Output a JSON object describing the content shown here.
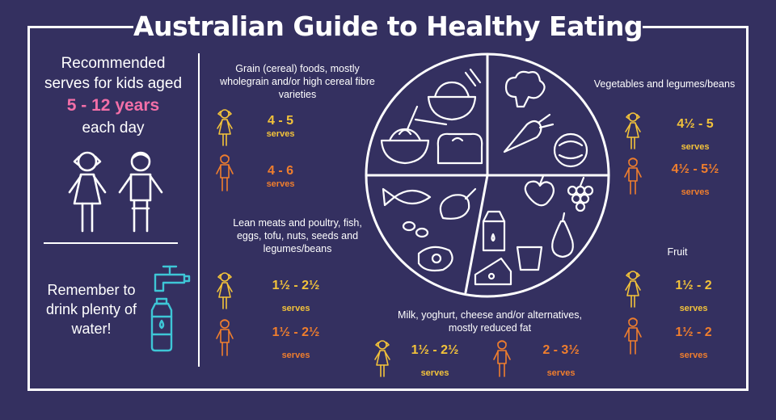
{
  "title": "Australian Guide to Healthy Eating",
  "left_panel": {
    "line1": "Recommended",
    "line2": "serves for kids aged",
    "age_range": "5 - 12 years",
    "line3": "each day",
    "water_line1": "Remember to",
    "water_line2": "drink plenty of",
    "water_line3": "water!"
  },
  "serve_label": "serves",
  "groups": {
    "grain": {
      "title_lines": [
        "Grain (cereal) foods, mostly",
        "wholegrain and/or high cereal fibre",
        "varieties"
      ],
      "girls": "4 - 5",
      "boys": "4 - 6"
    },
    "meat": {
      "title_lines": [
        "Lean meats and poultry, fish,",
        "eggs, tofu, nuts, seeds and",
        "legumes/beans"
      ],
      "girls": "1½ - 2½",
      "boys": "1½ - 2½"
    },
    "dairy": {
      "title_lines": [
        "Milk, yoghurt, cheese and/or alternatives,",
        "mostly reduced fat"
      ],
      "girls": "1½ - 2½",
      "boys": "2 - 3½"
    },
    "vegetables": {
      "title_lines": [
        "Vegetables and legumes/beans"
      ],
      "girls": "4½ - 5",
      "boys": "4½ - 5½"
    },
    "fruit": {
      "title_lines": [
        "Fruit"
      ],
      "girls": "1½ - 2",
      "boys": "1½ - 2"
    }
  },
  "colors": {
    "background": "#343060",
    "girl": "#f3c33a",
    "boy": "#f07e2d",
    "age_highlight": "#f36fa8",
    "water_icon": "#3ec6d6",
    "lines": "#ffffff"
  },
  "icons": [
    "girl-icon",
    "boy-icon",
    "tap-icon",
    "water-bottle-icon",
    "food-plate-icon"
  ]
}
